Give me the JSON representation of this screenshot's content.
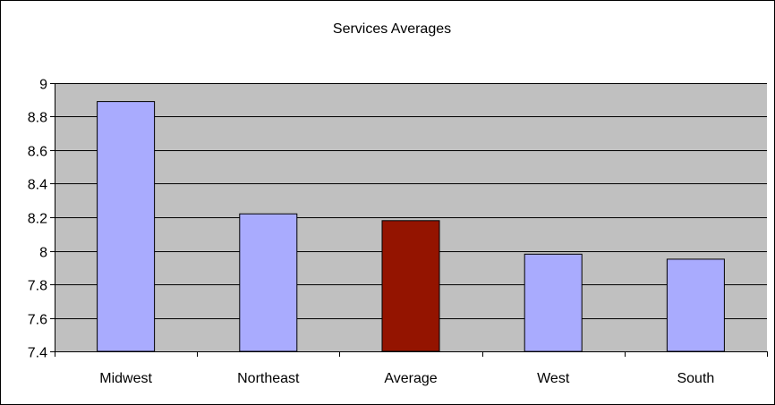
{
  "chart_data": {
    "type": "bar",
    "title": "Services Averages",
    "xlabel": "",
    "ylabel": "",
    "categories": [
      "Midwest",
      "Northeast",
      "Average",
      "West",
      "South"
    ],
    "values": [
      8.89,
      8.22,
      8.18,
      7.98,
      7.95
    ],
    "ylim": [
      7.4,
      9
    ],
    "yticks": [
      7.4,
      7.6,
      7.8,
      8,
      8.2,
      8.4,
      8.6,
      8.8,
      9
    ],
    "ytick_labels": [
      "7.4",
      "7.6",
      "7.8",
      "8",
      "8.2",
      "8.4",
      "8.6",
      "8.8",
      "9"
    ],
    "grid": true,
    "legend": "none",
    "colors": {
      "bar": "#a9abfe",
      "highlight": "#941400",
      "highlight_category": "Average",
      "plot_background": "#c0c0c0",
      "gridline": "#000000",
      "outline": "#000000"
    }
  }
}
